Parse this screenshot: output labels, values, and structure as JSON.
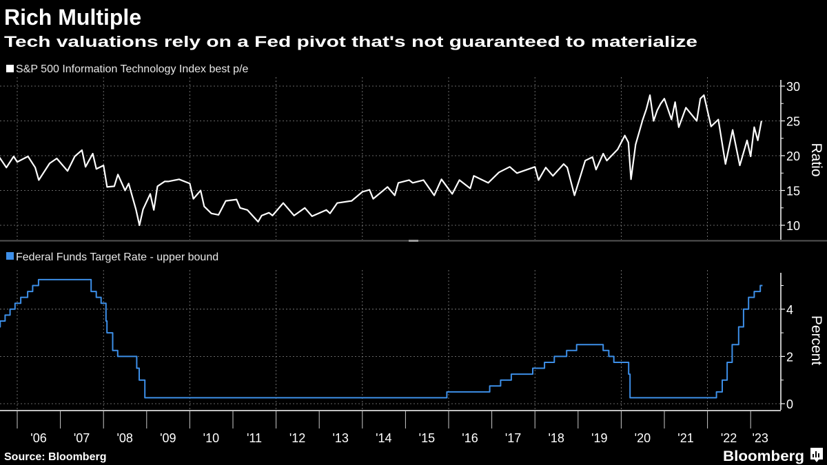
{
  "header": {
    "title": "Rich Multiple",
    "subtitle": "Tech valuations rely on a Fed pivot that's not guaranteed to materialize"
  },
  "footer": {
    "source": "Source: Bloomberg",
    "brand": "Bloomberg",
    "brand_icon": "bloomberg-chart-icon"
  },
  "colors": {
    "background": "#000000",
    "pe_line": "#ffffff",
    "fed_line": "#3d8fe8",
    "grid": "#8a8a8a"
  },
  "chart_data": [
    {
      "type": "line",
      "legend": "S&P 500 Information Technology Index best p/e",
      "legend_placement": "top-left",
      "ylabel": "Ratio",
      "ylim": [
        8,
        31
      ],
      "yticks": [
        "10",
        "15",
        "20",
        "25",
        "30"
      ],
      "grid": true,
      "series": [
        {
          "name": "S&P 500 Information Technology Index best p/e",
          "points": [
            [
              "2005-08",
              19.8
            ],
            [
              "2005-10",
              18.3
            ],
            [
              "2005-12",
              19.9
            ],
            [
              "2006-01",
              19.1
            ],
            [
              "2006-04",
              19.9
            ],
            [
              "2006-06",
              18.3
            ],
            [
              "2006-07",
              16.5
            ],
            [
              "2006-10",
              18.9
            ],
            [
              "2006-12",
              19.6
            ],
            [
              "2007-03",
              17.8
            ],
            [
              "2007-05",
              19.9
            ],
            [
              "2007-07",
              20.8
            ],
            [
              "2007-08",
              18.4
            ],
            [
              "2007-10",
              20.3
            ],
            [
              "2007-11",
              18.1
            ],
            [
              "2008-01",
              18.6
            ],
            [
              "2008-02",
              15.5
            ],
            [
              "2008-04",
              15.6
            ],
            [
              "2008-05",
              17.3
            ],
            [
              "2008-07",
              15.0
            ],
            [
              "2008-08",
              16.0
            ],
            [
              "2008-10",
              12.3
            ],
            [
              "2008-11",
              10.0
            ],
            [
              "2008-12",
              12.3
            ],
            [
              "2009-02",
              14.5
            ],
            [
              "2009-03",
              12.2
            ],
            [
              "2009-04",
              15.6
            ],
            [
              "2009-06",
              16.3
            ],
            [
              "2009-07",
              16.3
            ],
            [
              "2009-10",
              16.6
            ],
            [
              "2010-01",
              16.0
            ],
            [
              "2010-02",
              13.8
            ],
            [
              "2010-04",
              15.0
            ],
            [
              "2010-05",
              12.7
            ],
            [
              "2010-07",
              11.7
            ],
            [
              "2010-09",
              11.5
            ],
            [
              "2010-11",
              13.5
            ],
            [
              "2011-02",
              13.7
            ],
            [
              "2011-03",
              12.5
            ],
            [
              "2011-05",
              12.2
            ],
            [
              "2011-08",
              10.5
            ],
            [
              "2011-09",
              11.4
            ],
            [
              "2011-11",
              11.8
            ],
            [
              "2011-12",
              11.4
            ],
            [
              "2012-03",
              13.2
            ],
            [
              "2012-06",
              11.4
            ],
            [
              "2012-09",
              12.5
            ],
            [
              "2012-11",
              11.3
            ],
            [
              "2013-03",
              12.2
            ],
            [
              "2013-04",
              11.7
            ],
            [
              "2013-06",
              13.2
            ],
            [
              "2013-10",
              13.5
            ],
            [
              "2014-01",
              14.8
            ],
            [
              "2014-03",
              15.1
            ],
            [
              "2014-04",
              13.8
            ],
            [
              "2014-08",
              15.5
            ],
            [
              "2014-10",
              14.3
            ],
            [
              "2014-11",
              16.1
            ],
            [
              "2015-02",
              16.5
            ],
            [
              "2015-03",
              16.1
            ],
            [
              "2015-06",
              16.5
            ],
            [
              "2015-09",
              14.3
            ],
            [
              "2015-11",
              16.6
            ],
            [
              "2016-02",
              14.5
            ],
            [
              "2016-04",
              16.5
            ],
            [
              "2016-07",
              15.3
            ],
            [
              "2016-08",
              17.1
            ],
            [
              "2016-12",
              16.1
            ],
            [
              "2017-03",
              17.6
            ],
            [
              "2017-06",
              18.4
            ],
            [
              "2017-08",
              17.5
            ],
            [
              "2018-01",
              18.4
            ],
            [
              "2018-02",
              16.5
            ],
            [
              "2018-04",
              18.3
            ],
            [
              "2018-06",
              17.1
            ],
            [
              "2018-09",
              18.8
            ],
            [
              "2018-10",
              18.3
            ],
            [
              "2018-12",
              14.3
            ],
            [
              "2019-03",
              19.3
            ],
            [
              "2019-05",
              19.8
            ],
            [
              "2019-06",
              18.0
            ],
            [
              "2019-08",
              20.3
            ],
            [
              "2019-09",
              19.3
            ],
            [
              "2019-12",
              20.9
            ],
            [
              "2020-02",
              22.9
            ],
            [
              "2020-03-01",
              21.9
            ],
            [
              "2020-03-23",
              16.6
            ],
            [
              "2020-05",
              21.6
            ],
            [
              "2020-07",
              25.2
            ],
            [
              "2020-08",
              26.7
            ],
            [
              "2020-09",
              28.7
            ],
            [
              "2020-10",
              25.0
            ],
            [
              "2020-11",
              26.5
            ],
            [
              "2020-12",
              27.5
            ],
            [
              "2021-01",
              28.2
            ],
            [
              "2021-03",
              25.2
            ],
            [
              "2021-04",
              27.7
            ],
            [
              "2021-05",
              24.1
            ],
            [
              "2021-07",
              26.9
            ],
            [
              "2021-10",
              25.0
            ],
            [
              "2021-11",
              28.2
            ],
            [
              "2021-12",
              28.7
            ],
            [
              "2022-02",
              24.2
            ],
            [
              "2022-04",
              25.2
            ],
            [
              "2022-06",
              18.8
            ],
            [
              "2022-08",
              23.7
            ],
            [
              "2022-10",
              18.6
            ],
            [
              "2022-12",
              22.2
            ],
            [
              "2023-01",
              19.9
            ],
            [
              "2023-02",
              24.1
            ],
            [
              "2023-03",
              22.2
            ],
            [
              "2023-04",
              25.0
            ]
          ]
        }
      ]
    },
    {
      "type": "line",
      "step": true,
      "legend": "Federal Funds Target Rate - upper bound",
      "legend_placement": "top-left",
      "ylabel": "Percent",
      "ylim": [
        -0.2,
        5.8
      ],
      "yticks": [
        "0",
        "2",
        "4"
      ],
      "grid": true,
      "series": [
        {
          "name": "Federal Funds Target Rate - upper bound",
          "points": [
            [
              "2005-08-01",
              3.25
            ],
            [
              "2005-08-09",
              3.5
            ],
            [
              "2005-09-20",
              3.75
            ],
            [
              "2005-11-01",
              4.0
            ],
            [
              "2005-12-13",
              4.25
            ],
            [
              "2006-01-31",
              4.5
            ],
            [
              "2006-03-28",
              4.75
            ],
            [
              "2006-05-10",
              5.0
            ],
            [
              "2006-06-29",
              5.25
            ],
            [
              "2007-09-18",
              4.75
            ],
            [
              "2007-10-31",
              4.5
            ],
            [
              "2007-12-11",
              4.25
            ],
            [
              "2008-01-22",
              3.5
            ],
            [
              "2008-01-30",
              3.0
            ],
            [
              "2008-03-18",
              2.25
            ],
            [
              "2008-04-30",
              2.0
            ],
            [
              "2008-10-08",
              1.5
            ],
            [
              "2008-10-29",
              1.0
            ],
            [
              "2008-12-16",
              0.25
            ],
            [
              "2015-12-16",
              0.5
            ],
            [
              "2016-12-14",
              0.75
            ],
            [
              "2017-03-15",
              1.0
            ],
            [
              "2017-06-14",
              1.25
            ],
            [
              "2017-12-13",
              1.5
            ],
            [
              "2018-03-21",
              1.75
            ],
            [
              "2018-06-13",
              2.0
            ],
            [
              "2018-09-26",
              2.25
            ],
            [
              "2018-12-19",
              2.5
            ],
            [
              "2019-07-31",
              2.25
            ],
            [
              "2019-09-18",
              2.0
            ],
            [
              "2019-10-30",
              1.75
            ],
            [
              "2020-03-03",
              1.25
            ],
            [
              "2020-03-15",
              0.25
            ],
            [
              "2022-03-16",
              0.5
            ],
            [
              "2022-05-04",
              1.0
            ],
            [
              "2022-06-15",
              1.75
            ],
            [
              "2022-07-27",
              2.5
            ],
            [
              "2022-09-21",
              3.25
            ],
            [
              "2022-11-02",
              4.0
            ],
            [
              "2022-12-14",
              4.5
            ],
            [
              "2023-02-01",
              4.75
            ],
            [
              "2023-03-22",
              5.0
            ],
            [
              "2023-04-10",
              5.0
            ]
          ]
        }
      ]
    }
  ],
  "x_axis": {
    "tick_labels": [
      "'06",
      "'07",
      "'08",
      "'09",
      "'10",
      "'11",
      "'12",
      "'13",
      "'14",
      "'15",
      "'16",
      "'17",
      "'18",
      "'19",
      "'20",
      "'21",
      "'22",
      "'23"
    ],
    "range": [
      "2005-08",
      "2023-04"
    ]
  }
}
